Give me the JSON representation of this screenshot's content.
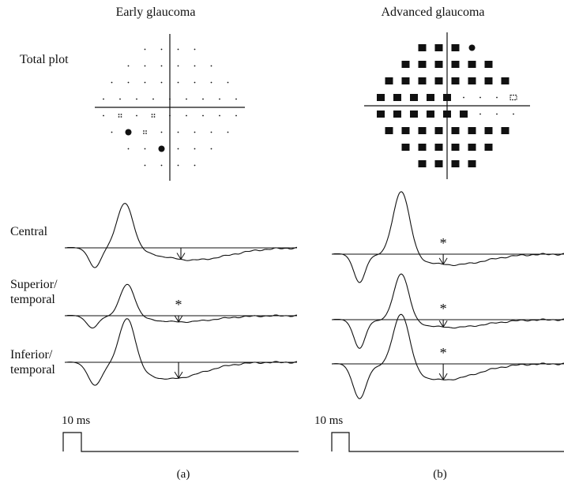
{
  "panels": [
    {
      "heading": "Early glaucoma",
      "plot_label": "Total plot",
      "label": "(a)",
      "pulse_label": "10 ms"
    },
    {
      "heading": "Advanced glaucoma",
      "label": "(b)",
      "pulse_label": "10 ms"
    }
  ],
  "traces": [
    {
      "label_lines": [
        "Central"
      ],
      "asterisk_a": false,
      "asterisk_b": true
    },
    {
      "label_lines": [
        "Superior/",
        "temporal"
      ],
      "asterisk_a": true,
      "asterisk_b": true
    },
    {
      "label_lines": [
        "Inferior/",
        "temporal"
      ],
      "asterisk_a": false,
      "asterisk_b": true
    }
  ],
  "marks": {
    "asterisk": "*"
  },
  "colors": {
    "ink": "#111111",
    "background": "#ffffff"
  }
}
